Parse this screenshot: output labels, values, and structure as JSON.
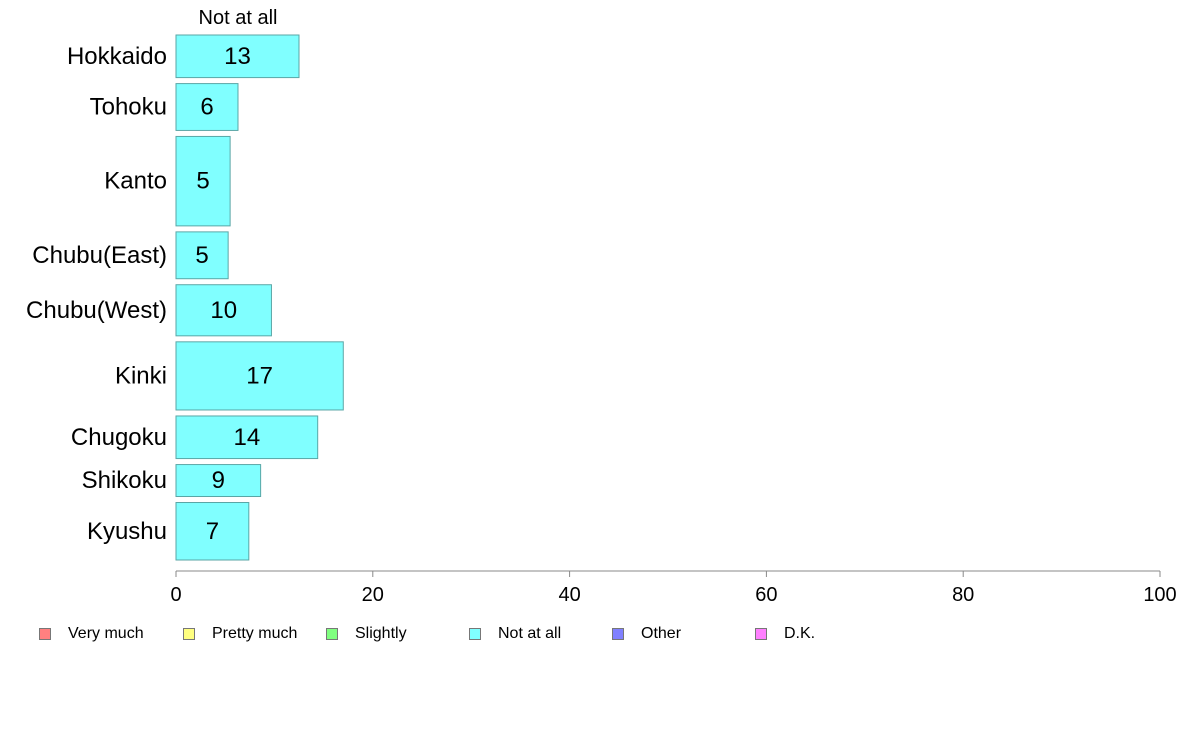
{
  "chart_data": {
    "type": "bar",
    "orientation": "horizontal",
    "stacked": true,
    "categories": [
      "Hokkaido",
      "Tohoku",
      "Kanto",
      "Chubu(East)",
      "Chubu(West)",
      "Kinki",
      "Chugoku",
      "Shikoku",
      "Kyushu"
    ],
    "category_weights": [
      1.0,
      1.1,
      2.1,
      1.1,
      1.2,
      1.6,
      1.0,
      0.75,
      1.35
    ],
    "series": [
      {
        "name": "Not at all",
        "color": "#80ffff",
        "values": [
          12.5,
          6.3,
          5.5,
          5.3,
          9.7,
          17.0,
          14.4,
          8.6,
          7.4
        ],
        "labels": [
          "13",
          "6",
          "5",
          "5",
          "10",
          "17",
          "14",
          "9",
          "7"
        ]
      }
    ],
    "series_header": "Not at all",
    "xlim": [
      0,
      100
    ],
    "xticks": [
      "0",
      "20",
      "40",
      "60",
      "80",
      "100"
    ],
    "grid": false,
    "legend_position": "bottom",
    "legend": [
      {
        "label": "Very much",
        "color": "#ff8080"
      },
      {
        "label": "Pretty much",
        "color": "#ffff80"
      },
      {
        "label": "Slightly",
        "color": "#80ff80"
      },
      {
        "label": "Not at all",
        "color": "#80ffff"
      },
      {
        "label": "Other",
        "color": "#8080ff"
      },
      {
        "label": "D.K.",
        "color": "#ff80ff"
      }
    ]
  }
}
